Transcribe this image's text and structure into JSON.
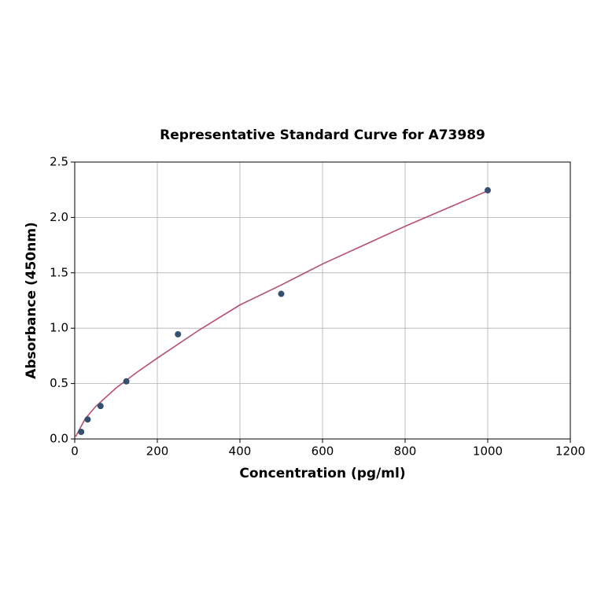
{
  "chart_data": {
    "type": "scatter",
    "title": "Representative Standard Curve for A73989",
    "x_label": "Concentration (pg/ml)",
    "y_label": "Absorbance (450nm)",
    "xlim": [
      0,
      1200
    ],
    "ylim": [
      0,
      2.5
    ],
    "xticks": [
      0,
      200,
      400,
      600,
      800,
      1000,
      1200
    ],
    "yticks": [
      {
        "value": 0,
        "label": "0.0"
      },
      0.5,
      {
        "value": 1,
        "label": "1.0"
      },
      1.5,
      {
        "value": 2,
        "label": "2.0"
      },
      2.5
    ],
    "grid": true,
    "series": [
      {
        "mode": "line",
        "color": "#b5506e",
        "x": [
          2,
          25,
          50,
          100,
          150,
          200,
          300,
          400,
          500,
          600,
          700,
          800,
          900,
          1000
        ],
        "values": [
          0.02,
          0.18,
          0.29,
          0.46,
          0.6,
          0.73,
          0.98,
          1.21,
          1.39,
          1.58,
          1.75,
          1.92,
          2.08,
          2.24
        ]
      },
      {
        "mode": "markers",
        "color": "#34506f",
        "x": [
          15.6,
          31.25,
          62.5,
          125,
          250,
          500,
          1000
        ],
        "values": [
          0.064,
          0.176,
          0.297,
          0.52,
          0.945,
          1.31,
          2.245
        ]
      }
    ]
  }
}
